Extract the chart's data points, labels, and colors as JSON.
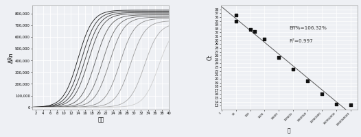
{
  "left_ylabel": "ΔRn",
  "left_xlabel": "循环",
  "left_xlim": [
    1,
    40
  ],
  "left_ylim": [
    -20000,
    870000
  ],
  "left_yticks": [
    0,
    100000,
    200000,
    300000,
    400000,
    500000,
    600000,
    700000,
    800000
  ],
  "left_ytick_labels": [
    "0",
    "100,000",
    "200,000",
    "300,000",
    "400,000",
    "500,000",
    "600,000",
    "700,000",
    "800,000"
  ],
  "left_xticks": [
    2,
    4,
    6,
    8,
    10,
    12,
    14,
    16,
    18,
    20,
    22,
    24,
    26,
    28,
    30,
    32,
    34,
    36,
    38,
    40
  ],
  "left_bg": "#eef0f4",
  "left_grid_color": "#ffffff",
  "curve_midpoints": [
    14,
    15,
    16,
    17,
    19,
    21,
    23,
    26,
    29,
    33,
    37
  ],
  "curve_colors": [
    "#111111",
    "#222222",
    "#333333",
    "#444444",
    "#555555",
    "#666666",
    "#777777",
    "#888888",
    "#999999",
    "#aaaaaa",
    "#cccccc"
  ],
  "curve_scales": [
    830000,
    820000,
    810000,
    800000,
    790000,
    780000,
    770000,
    760000,
    740000,
    720000,
    700000
  ],
  "right_xlabel": "量",
  "right_ylabel": "Ct",
  "right_ylim": [
    12,
    39
  ],
  "right_yticks": [
    13,
    14,
    15,
    16,
    17,
    18,
    19,
    20,
    21,
    22,
    23,
    24,
    25,
    26,
    27,
    28,
    29,
    30,
    31,
    32,
    33,
    34,
    35,
    36,
    37,
    38
  ],
  "right_bg": "#eef0f4",
  "right_grid_color": "#ffffff",
  "scatter_x": [
    10,
    10,
    100,
    200,
    1000,
    10000,
    100000,
    1000000,
    10000000,
    100000000,
    1000000000
  ],
  "scatter_y": [
    36.5,
    35.0,
    32.7,
    32.2,
    30.3,
    25.5,
    22.5,
    19.5,
    16.0,
    13.5,
    13.2
  ],
  "line_color": "#555555",
  "marker_color": "#111111",
  "annotation_text_line1": "Eff%=106.32%",
  "annotation_text_line2": "R²=0.997",
  "fig_bg": "#eef0f4"
}
